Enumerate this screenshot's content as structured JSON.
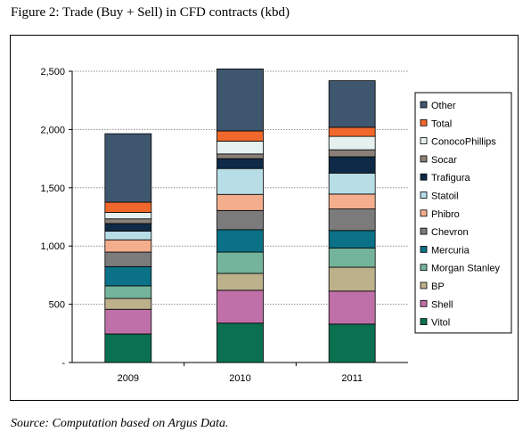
{
  "figure_title": "Figure 2: Trade (Buy + Sell) in CFD contracts (kbd)",
  "source_note": "Source: Computation based on Argus Data.",
  "chart_data": {
    "type": "bar",
    "stacked": true,
    "categories": [
      "2009",
      "2010",
      "2011"
    ],
    "ylim": [
      0,
      2500
    ],
    "yticks": [
      0,
      500,
      1000,
      1500,
      2000,
      2500
    ],
    "ytick_labels": [
      "-",
      "500",
      "1,000",
      "1,500",
      "2,000",
      "2,500"
    ],
    "grid": true,
    "legend_position": "right",
    "series": [
      {
        "name": "Vitol",
        "color": "#0b7050",
        "values": [
          245,
          338,
          330
        ]
      },
      {
        "name": "Shell",
        "color": "#c070a8",
        "values": [
          212,
          282,
          283
        ]
      },
      {
        "name": "BP",
        "color": "#bdb18c",
        "values": [
          93,
          145,
          205
        ]
      },
      {
        "name": "Morgan Stanley",
        "color": "#74b49a",
        "values": [
          108,
          183,
          165
        ]
      },
      {
        "name": "Mercuria",
        "color": "#0b7187",
        "values": [
          165,
          192,
          150
        ]
      },
      {
        "name": "Chevron",
        "color": "#7b7b7b",
        "values": [
          125,
          165,
          185
        ]
      },
      {
        "name": "Phibro",
        "color": "#f4ae8e",
        "values": [
          105,
          138,
          128
        ]
      },
      {
        "name": "Statoil",
        "color": "#b7dde6",
        "values": [
          75,
          222,
          180
        ]
      },
      {
        "name": "Trafigura",
        "color": "#0e2a47",
        "values": [
          65,
          85,
          140
        ]
      },
      {
        "name": "Socar",
        "color": "#8a8078",
        "values": [
          40,
          40,
          60
        ]
      },
      {
        "name": "ConocoPhillips",
        "color": "#e4f1ee",
        "values": [
          55,
          110,
          115
        ]
      },
      {
        "name": "Total",
        "color": "#f0682c",
        "values": [
          88,
          88,
          78
        ]
      },
      {
        "name": "Other",
        "color": "#3f566f",
        "values": [
          588,
          532,
          400
        ]
      }
    ]
  }
}
